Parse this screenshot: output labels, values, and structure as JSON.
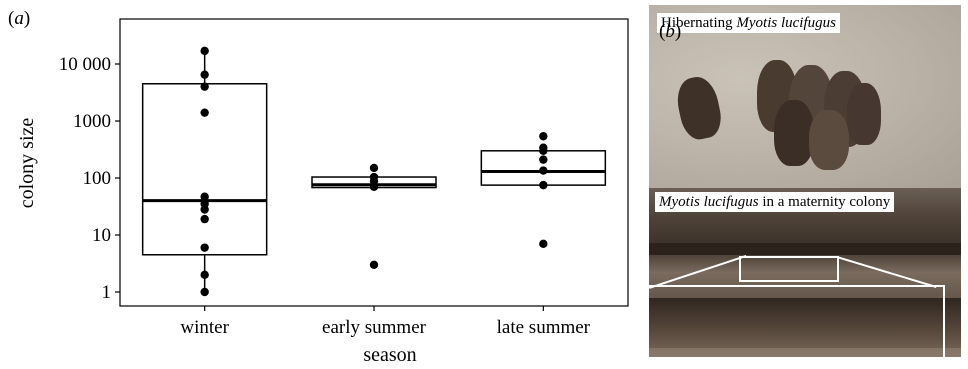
{
  "panel_a": {
    "label_open": "(",
    "label_letter": "a",
    "label_close": ")"
  },
  "panel_b": {
    "label_open": "(",
    "label_letter": "b",
    "label_close": ")",
    "caption_top_prefix": "Hibernating ",
    "caption_top_species": "Myotis lucifugus",
    "caption_bottom_species": "Myotis lucifugus",
    "caption_bottom_suffix": " in a maternity colony"
  },
  "chart_data": {
    "type": "box",
    "xlabel": "season",
    "ylabel": "colony size",
    "yscale": "log",
    "ylim": [
      0.7,
      22000
    ],
    "yticks": [
      {
        "value": 1,
        "label": "1"
      },
      {
        "value": 10,
        "label": "10"
      },
      {
        "value": 100,
        "label": "100"
      },
      {
        "value": 1000,
        "label": "1000"
      },
      {
        "value": 10000,
        "label": "10 000"
      }
    ],
    "categories": [
      "winter",
      "early summer",
      "late summer"
    ],
    "boxes": [
      {
        "q1": 4.5,
        "median": 40,
        "q3": 4500,
        "whisker_low": 1,
        "whisker_high": 17000,
        "points": [
          1,
          2,
          6,
          19,
          28,
          35,
          47,
          1400,
          4000,
          6500,
          17000
        ]
      },
      {
        "q1": 68,
        "median": 76,
        "q3": 104,
        "whisker_low": 68,
        "whisker_high": 104,
        "points": [
          3,
          70,
          88,
          104,
          150
        ]
      },
      {
        "q1": 75,
        "median": 130,
        "q3": 300,
        "whisker_low": 75,
        "whisker_high": 300,
        "points": [
          7,
          75,
          135,
          210,
          300,
          340,
          540
        ]
      }
    ],
    "grid": false,
    "legend": "none"
  }
}
